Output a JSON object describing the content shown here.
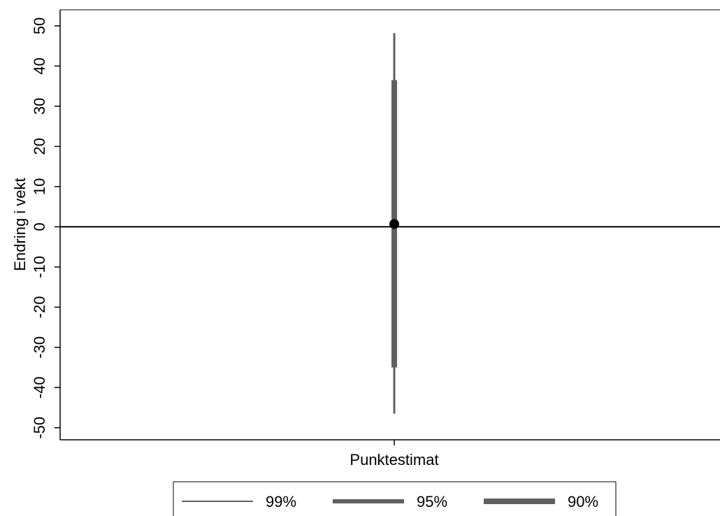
{
  "chart_data": {
    "type": "errorbar",
    "title": "",
    "xlabel": "",
    "ylabel": "Endring i vekt",
    "categories": [
      "Punktestimat"
    ],
    "ylim": [
      -53,
      54
    ],
    "yticks": [
      -50,
      -40,
      -30,
      -20,
      -10,
      0,
      10,
      20,
      30,
      40,
      50
    ],
    "point_estimate": 0.7,
    "reference_line_y": 0,
    "intervals": [
      {
        "name": "99%",
        "low": -46.5,
        "high": 48.2
      },
      {
        "name": "95%",
        "low": -35.0,
        "high": 36.5
      },
      {
        "name": "90%",
        "low": -35.0,
        "high": 36.5
      }
    ],
    "legend": {
      "position": "bottom",
      "items": [
        {
          "label": "99%",
          "style": "thin"
        },
        {
          "label": "95%",
          "style": "thick"
        },
        {
          "label": "90%",
          "style": "thicker"
        }
      ]
    },
    "colors": {
      "interval": "#606060",
      "point": "#000000",
      "axis": "#000000"
    },
    "grid": false
  }
}
